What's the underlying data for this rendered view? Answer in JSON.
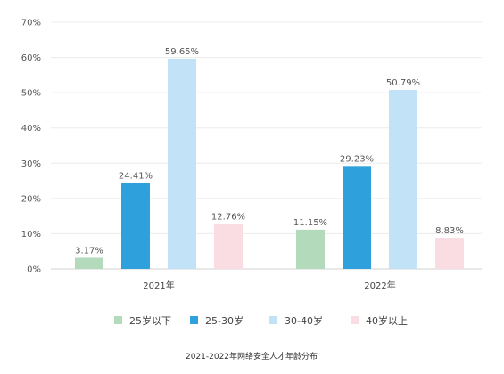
{
  "chart_data": {
    "type": "bar",
    "title": "2021-2022年网络安全人才年龄分布",
    "categories": [
      "2021年",
      "2022年"
    ],
    "series": [
      {
        "name": "25岁以下",
        "color": "#b3dbbb",
        "values": [
          3.17,
          11.15
        ],
        "labels": [
          "3.17%",
          "11.15%"
        ]
      },
      {
        "name": "25-30岁",
        "color": "#2ea0db",
        "values": [
          24.41,
          29.23
        ],
        "labels": [
          "24.41%",
          "29.23%"
        ]
      },
      {
        "name": "30-40岁",
        "color": "#c2e3f7",
        "values": [
          59.65,
          50.79
        ],
        "labels": [
          "59.65%",
          "50.79%"
        ]
      },
      {
        "name": "40岁以上",
        "color": "#fadde3",
        "values": [
          12.76,
          8.83
        ],
        "labels": [
          "12.76%",
          "8.83%"
        ]
      }
    ],
    "ylim": [
      0,
      70
    ],
    "yticks": [
      "0%",
      "10%",
      "20%",
      "30%",
      "40%",
      "50%",
      "60%",
      "70%"
    ],
    "grid": true,
    "legend_position": "bottom"
  }
}
